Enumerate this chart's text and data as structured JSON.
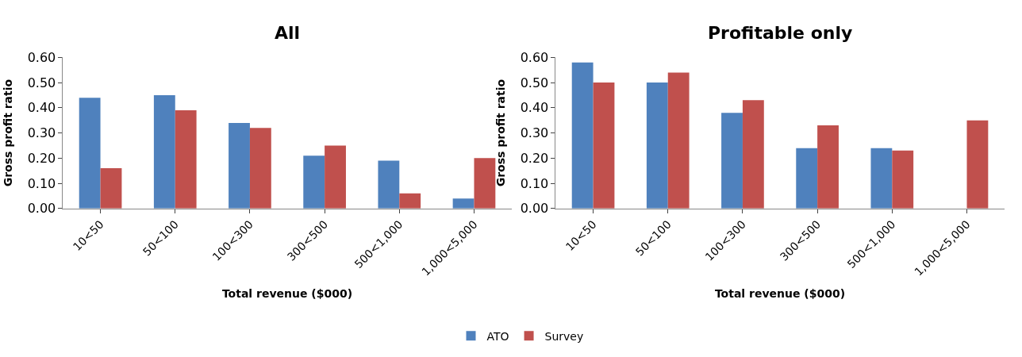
{
  "chart_data": [
    {
      "type": "bar",
      "title": "All",
      "xlabel": "Total revenue ($000)",
      "ylabel": "Gross profit ratio",
      "categories": [
        "10<50",
        "50<100",
        "100<300",
        "300<500",
        "500<1,000",
        "1,000<5,000"
      ],
      "series": [
        {
          "name": "ATO",
          "color": "#4f81bd",
          "values": [
            0.44,
            0.45,
            0.34,
            0.21,
            0.19,
            0.04
          ]
        },
        {
          "name": "Survey",
          "color": "#c0504d",
          "values": [
            0.16,
            0.39,
            0.32,
            0.25,
            0.06,
            0.2
          ]
        }
      ],
      "ylim": [
        0,
        0.6
      ],
      "yticks": [
        {
          "value": 0,
          "label": "0.00"
        },
        {
          "value": 0.1,
          "label": "0.10"
        },
        {
          "value": 0.2,
          "label": "0.20"
        },
        {
          "value": 0.3,
          "label": "0.30"
        },
        {
          "value": 0.4,
          "label": "0.40"
        },
        {
          "value": 0.5,
          "label": "0.50"
        },
        {
          "value": 0.6,
          "label": "0.60"
        }
      ],
      "grid": false,
      "legend": "bottom"
    },
    {
      "type": "bar",
      "title": "Profitable only",
      "xlabel": "Total revenue ($000)",
      "ylabel": "Gross profit ratio",
      "categories": [
        "10<50",
        "50<100",
        "100<300",
        "300<500",
        "500<1,000",
        "1,000<5,000"
      ],
      "series": [
        {
          "color": "#4f81bd",
          "values": [
            0.58,
            0.5,
            0.38,
            0.24,
            0.24,
            null
          ]
        },
        {
          "color": "#c0504d",
          "values": [
            0.5,
            0.54,
            0.43,
            0.33,
            0.23,
            0.35
          ]
        }
      ],
      "ylim": [
        0,
        0.6
      ],
      "yticks": [
        {
          "value": 0,
          "label": "0.00"
        },
        {
          "value": 0.1,
          "label": "0.10"
        },
        {
          "value": 0.2,
          "label": "0.20"
        },
        {
          "value": 0.3,
          "label": "0.30"
        },
        {
          "value": 0.4,
          "label": "0.40"
        },
        {
          "value": 0.5,
          "label": "0.50"
        },
        {
          "value": 0.6,
          "label": "0.60"
        }
      ],
      "grid": false,
      "legend": false
    }
  ]
}
